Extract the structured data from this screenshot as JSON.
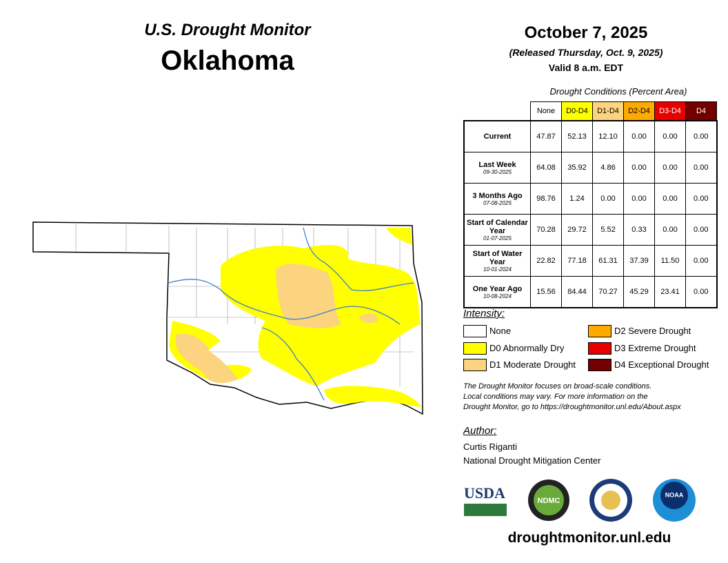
{
  "header": {
    "subtitle": "U.S. Drought Monitor",
    "title": "Oklahoma"
  },
  "date": {
    "title": "October 7, 2025",
    "released": "(Released Thursday, Oct. 9, 2025)",
    "valid": "Valid 8 a.m. EDT"
  },
  "table": {
    "caption": "Drought Conditions (Percent Area)",
    "columns": [
      {
        "label": "None",
        "color": "#ffffff"
      },
      {
        "label": "D0-D4",
        "color": "#ffff00"
      },
      {
        "label": "D1-D4",
        "color": "#fcd37f"
      },
      {
        "label": "D2-D4",
        "color": "#ffaa00"
      },
      {
        "label": "D3-D4",
        "color": "#e60000"
      },
      {
        "label": "D4",
        "color": "#730000"
      }
    ],
    "rows": [
      {
        "label": "Current",
        "values": [
          "47.87",
          "52.13",
          "12.10",
          "0.00",
          "0.00",
          "0.00"
        ]
      },
      {
        "label": "Last Week",
        "date": "09-30-2025",
        "values": [
          "64.08",
          "35.92",
          "4.86",
          "0.00",
          "0.00",
          "0.00"
        ]
      },
      {
        "label": "3 Months Ago",
        "date": "07-08-2025",
        "values": [
          "98.76",
          "1.24",
          "0.00",
          "0.00",
          "0.00",
          "0.00"
        ]
      },
      {
        "label": "Start of Calendar Year",
        "date": "01-07-2025",
        "values": [
          "70.28",
          "29.72",
          "5.52",
          "0.33",
          "0.00",
          "0.00"
        ]
      },
      {
        "label": "Start of Water Year",
        "date": "10-01-2024",
        "values": [
          "22.82",
          "77.18",
          "61.31",
          "37.39",
          "11.50",
          "0.00"
        ]
      },
      {
        "label": "One Year Ago",
        "date": "10-08-2024",
        "values": [
          "15.56",
          "84.44",
          "70.27",
          "45.29",
          "23.41",
          "0.00"
        ]
      }
    ]
  },
  "legend": {
    "title": "Intensity:",
    "items": [
      {
        "label": "None",
        "color": "#ffffff"
      },
      {
        "label": "D0 Abnormally Dry",
        "color": "#ffff00"
      },
      {
        "label": "D1 Moderate Drought",
        "color": "#fcd37f"
      },
      {
        "label": "D2 Severe Drought",
        "color": "#ffaa00"
      },
      {
        "label": "D3 Extreme Drought",
        "color": "#e60000"
      },
      {
        "label": "D4 Exceptional Drought",
        "color": "#730000"
      }
    ]
  },
  "note": [
    "The Drought Monitor focuses on broad-scale conditions.",
    "Local conditions may vary. For more information on the",
    "Drought Monitor, go to https://droughtmonitor.unl.edu/About.aspx"
  ],
  "author": {
    "title": "Author:",
    "name": "Curtis Riganti",
    "org": "National Drought Mitigation Center"
  },
  "logos": [
    "USDA",
    "NDMC",
    "NOAA"
  ],
  "url": "droughtmonitor.unl.edu"
}
